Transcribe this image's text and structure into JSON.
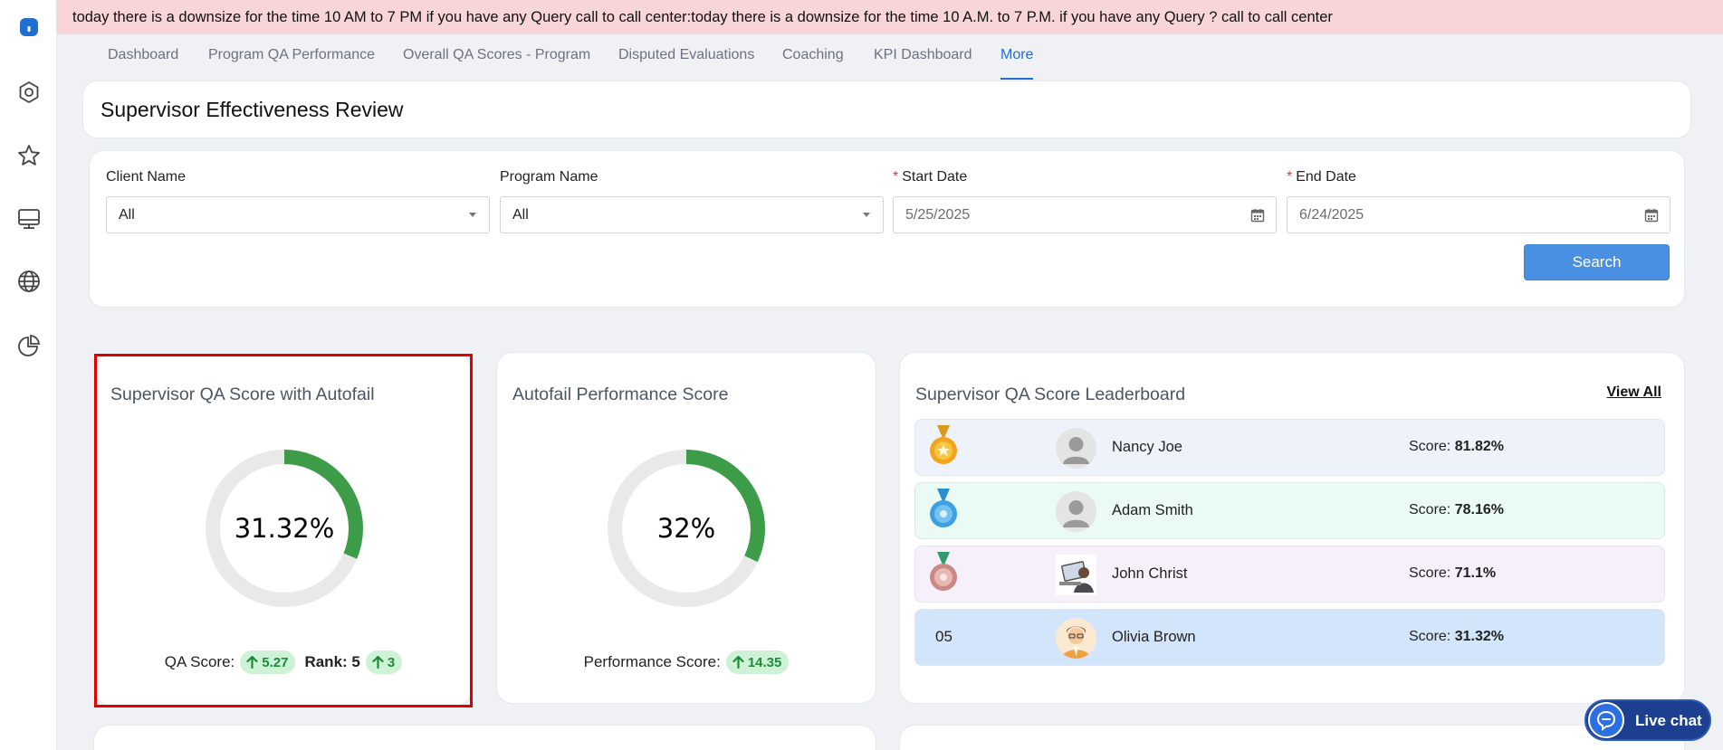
{
  "sidebar": {
    "items": [
      {
        "icon": "home-icon"
      },
      {
        "icon": "settings-hex-icon"
      },
      {
        "icon": "star-icon"
      },
      {
        "icon": "monitor-icon"
      },
      {
        "icon": "globe-icon"
      },
      {
        "icon": "pie-chart-icon"
      }
    ]
  },
  "announcement": "today there is a downsize for the time 10 AM to 7 PM if you have any Query call to call center:today there is a downsize for the time 10 A.M. to 7 P.M. if you have any Query ? call to call center",
  "tabs": [
    {
      "label": "Dashboard"
    },
    {
      "label": "Program QA Performance"
    },
    {
      "label": "Overall QA Scores - Program"
    },
    {
      "label": "Disputed Evaluations"
    },
    {
      "label": "Coaching"
    },
    {
      "label": "KPI Dashboard"
    },
    {
      "label": "More",
      "active": true
    }
  ],
  "page_title": "Supervisor Effectiveness Review",
  "filters": {
    "client_name": {
      "label": "Client Name",
      "value": "All"
    },
    "program_name": {
      "label": "Program Name",
      "value": "All"
    },
    "start_date": {
      "label": "Start Date",
      "required_mark": "*",
      "value": "5/25/2025"
    },
    "end_date": {
      "label": "End Date",
      "required_mark": "*",
      "value": "6/24/2025"
    },
    "search_label": "Search"
  },
  "qa_score_card": {
    "title": "Supervisor QA Score with Autofail",
    "percent_label": "31.32%",
    "percent": 31.32,
    "qa_score_label": "QA Score:",
    "qa_score_delta": "5.27",
    "rank_label": "Rank: 5",
    "rank_delta": "3"
  },
  "autofail_card": {
    "title": "Autofail Performance Score",
    "percent_label": "32%",
    "percent": 32,
    "performance_label": "Performance Score:",
    "performance_delta": "14.35"
  },
  "leaderboard": {
    "title": "Supervisor QA Score Leaderboard",
    "view_all": "View All",
    "score_label": "Score:",
    "rows": [
      {
        "rank": "",
        "medal": "gold-medal-icon",
        "name": "Nancy Joe",
        "score": "81.82%",
        "bg": "#eef3fb"
      },
      {
        "rank": "",
        "medal": "blue-medal-icon",
        "name": "Adam Smith",
        "score": "78.16%",
        "bg": "#eafaf5"
      },
      {
        "rank": "",
        "medal": "bronze-medal-icon",
        "name": "John Christ",
        "score": "71.1%",
        "bg": "#f6f0fb"
      },
      {
        "rank": "05",
        "medal": "",
        "name": "Olivia Brown",
        "score": "31.32%",
        "bg": "#d3e5fb"
      }
    ]
  },
  "live_chat_label": "Live chat",
  "colors": {
    "accent": "#1f6fd1",
    "donut_fill": "#3d9c48",
    "donut_track": "#e9e9e9",
    "positive": "#1e8a3a",
    "highlight": "#e00000"
  }
}
